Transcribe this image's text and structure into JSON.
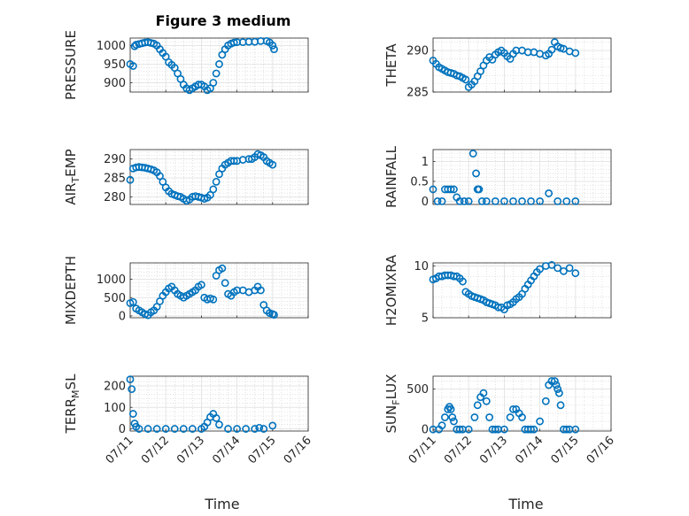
{
  "figure": {
    "title": "Figure 3 medium",
    "xlabel": "Time",
    "x_ticklabels": [
      "07/11",
      "07/12",
      "07/13",
      "07/14",
      "07/15",
      "07/16"
    ]
  },
  "chart_data": [
    {
      "type": "scatter",
      "panel": "left-1",
      "ylabel": "PRESSURE",
      "xlim": [
        "07/11",
        "07/16"
      ],
      "ylim": [
        875,
        1020
      ],
      "yticks": [
        900,
        950,
        1000
      ],
      "grid": true,
      "x": [
        "07/11 00:00",
        "07/11 02:00",
        "07/11 03:00",
        "07/11 04:00",
        "07/11 06:00",
        "07/11 08:00",
        "07/11 10:00",
        "07/11 12:00",
        "07/11 14:00",
        "07/11 16:00",
        "07/11 18:00",
        "07/11 20:00",
        "07/11 22:00",
        "07/12 00:00",
        "07/12 02:00",
        "07/12 04:00",
        "07/12 06:00",
        "07/12 08:00",
        "07/12 10:00",
        "07/12 12:00",
        "07/12 14:00",
        "07/12 16:00",
        "07/12 18:00",
        "07/12 20:00",
        "07/12 22:00",
        "07/13 00:00",
        "07/13 02:00",
        "07/13 04:00",
        "07/13 06:00",
        "07/13 08:00",
        "07/13 10:00",
        "07/13 12:00",
        "07/13 14:00",
        "07/13 16:00",
        "07/13 18:00",
        "07/13 20:00",
        "07/13 22:00",
        "07/14 00:00",
        "07/14 04:00",
        "07/14 08:00",
        "07/14 12:00",
        "07/14 16:00",
        "07/14 20:00",
        "07/14 22:00",
        "07/15 00:00",
        "07/15 01:00"
      ],
      "y": [
        950,
        945,
        998,
        1002,
        1004,
        1006,
        1008,
        1009,
        1007,
        1005,
        1000,
        990,
        980,
        970,
        955,
        948,
        940,
        925,
        910,
        895,
        885,
        880,
        885,
        890,
        895,
        895,
        890,
        880,
        885,
        900,
        925,
        950,
        975,
        990,
        1000,
        1005,
        1008,
        1009,
        1009,
        1010,
        1010,
        1012,
        1012,
        1008,
        1000,
        990
      ]
    },
    {
      "type": "scatter",
      "panel": "right-1",
      "ylabel": "THETA",
      "xlim": [
        "07/11",
        "07/16"
      ],
      "ylim": [
        285,
        291.5
      ],
      "yticks": [
        285,
        290
      ],
      "grid": true,
      "x": [
        "07/11 00:00",
        "07/11 02:00",
        "07/11 04:00",
        "07/11 06:00",
        "07/11 08:00",
        "07/11 10:00",
        "07/11 12:00",
        "07/11 14:00",
        "07/11 16:00",
        "07/11 18:00",
        "07/11 20:00",
        "07/11 22:00",
        "07/12 00:00",
        "07/12 02:00",
        "07/12 04:00",
        "07/12 06:00",
        "07/12 08:00",
        "07/12 10:00",
        "07/12 12:00",
        "07/12 14:00",
        "07/12 16:00",
        "07/12 18:00",
        "07/12 20:00",
        "07/12 22:00",
        "07/13 00:00",
        "07/13 02:00",
        "07/13 04:00",
        "07/13 06:00",
        "07/13 08:00",
        "07/13 12:00",
        "07/13 16:00",
        "07/13 20:00",
        "07/14 00:00",
        "07/14 04:00",
        "07/14 06:00",
        "07/14 08:00",
        "07/14 10:00",
        "07/14 12:00",
        "07/14 14:00",
        "07/14 16:00",
        "07/14 20:00",
        "07/15 00:00"
      ],
      "y": [
        288.8,
        288.4,
        288.0,
        287.8,
        287.6,
        287.4,
        287.3,
        287.2,
        287.0,
        286.9,
        286.7,
        286.5,
        285.6,
        285.9,
        286.3,
        286.9,
        287.5,
        288.2,
        288.8,
        289.2,
        288.9,
        289.5,
        289.8,
        290.0,
        289.7,
        289.3,
        289.0,
        289.6,
        290.0,
        290.0,
        289.8,
        289.8,
        289.6,
        289.4,
        289.6,
        290.1,
        291.0,
        290.5,
        290.3,
        290.2,
        289.9,
        289.7
      ]
    },
    {
      "type": "scatter",
      "panel": "left-2",
      "ylabel": "AIR_TEMP",
      "xlim": [
        "07/11",
        "07/16"
      ],
      "ylim": [
        278,
        292.5
      ],
      "yticks": [
        280,
        285,
        290
      ],
      "grid": true,
      "x": [
        "07/11 00:00",
        "07/11 02:00",
        "07/11 04:00",
        "07/11 06:00",
        "07/11 08:00",
        "07/11 10:00",
        "07/11 12:00",
        "07/11 14:00",
        "07/11 16:00",
        "07/11 18:00",
        "07/11 20:00",
        "07/11 22:00",
        "07/12 00:00",
        "07/12 02:00",
        "07/12 04:00",
        "07/12 06:00",
        "07/12 08:00",
        "07/12 10:00",
        "07/12 12:00",
        "07/12 14:00",
        "07/12 16:00",
        "07/12 18:00",
        "07/12 20:00",
        "07/12 22:00",
        "07/13 00:00",
        "07/13 02:00",
        "07/13 04:00",
        "07/13 06:00",
        "07/13 08:00",
        "07/13 10:00",
        "07/13 12:00",
        "07/13 14:00",
        "07/13 16:00",
        "07/13 18:00",
        "07/13 20:00",
        "07/13 22:00",
        "07/14 00:00",
        "07/14 04:00",
        "07/14 08:00",
        "07/14 10:00",
        "07/14 12:00",
        "07/14 14:00",
        "07/14 16:00",
        "07/14 18:00",
        "07/14 20:00",
        "07/14 22:00",
        "07/15 00:00"
      ],
      "y": [
        284.5,
        287.5,
        287.8,
        287.9,
        287.8,
        287.7,
        287.5,
        287.3,
        287.0,
        286.5,
        285.5,
        284.0,
        282.5,
        281.5,
        280.8,
        280.5,
        280.2,
        280.0,
        279.5,
        279.0,
        279.3,
        280.0,
        280.2,
        280.0,
        279.8,
        279.5,
        279.8,
        280.5,
        282.0,
        284.0,
        286.0,
        287.5,
        288.5,
        289.0,
        289.5,
        289.5,
        289.5,
        289.8,
        290.0,
        290.0,
        290.5,
        291.3,
        291.0,
        290.5,
        289.5,
        289.0,
        288.5
      ]
    },
    {
      "type": "scatter",
      "panel": "right-2",
      "ylabel": "RAINFALL",
      "xlim": [
        "07/11",
        "07/16"
      ],
      "ylim": [
        -0.08,
        1.3
      ],
      "yticks": [
        0,
        0.5,
        1
      ],
      "grid": true,
      "x": [
        "07/11 00:00",
        "07/11 03:00",
        "07/11 06:00",
        "07/11 08:00",
        "07/11 10:00",
        "07/11 12:00",
        "07/11 14:00",
        "07/11 16:00",
        "07/11 18:00",
        "07/11 21:00",
        "07/12 00:00",
        "07/12 03:00",
        "07/12 05:00",
        "07/12 06:00",
        "07/12 07:00",
        "07/12 09:00",
        "07/12 12:00",
        "07/12 18:00",
        "07/13 00:00",
        "07/13 06:00",
        "07/13 12:00",
        "07/13 18:00",
        "07/14 00:00",
        "07/14 06:00",
        "07/14 12:00",
        "07/14 18:00",
        "07/15 00:00"
      ],
      "y": [
        0.3,
        0,
        0,
        0.3,
        0.3,
        0.3,
        0.3,
        0.1,
        0,
        0,
        0,
        1.2,
        0.7,
        0.3,
        0.3,
        0,
        0,
        0,
        0,
        0,
        0,
        0,
        0,
        0.2,
        0,
        0,
        0
      ]
    },
    {
      "type": "scatter",
      "panel": "left-3",
      "ylabel": "MIXDEPTH",
      "xlim": [
        "07/11",
        "07/16"
      ],
      "ylim": [
        -50,
        1450
      ],
      "yticks": [
        0,
        500,
        1000
      ],
      "grid": true,
      "x": [
        "07/11 00:00",
        "07/11 02:00",
        "07/11 04:00",
        "07/11 06:00",
        "07/11 08:00",
        "07/11 10:00",
        "07/11 12:00",
        "07/11 14:00",
        "07/11 16:00",
        "07/11 18:00",
        "07/11 20:00",
        "07/11 22:00",
        "07/12 00:00",
        "07/12 02:00",
        "07/12 04:00",
        "07/12 06:00",
        "07/12 08:00",
        "07/12 10:00",
        "07/12 12:00",
        "07/12 14:00",
        "07/12 16:00",
        "07/12 18:00",
        "07/12 20:00",
        "07/12 22:00",
        "07/13 00:00",
        "07/13 02:00",
        "07/13 04:00",
        "07/13 06:00",
        "07/13 08:00",
        "07/13 10:00",
        "07/13 12:00",
        "07/13 14:00",
        "07/13 16:00",
        "07/13 18:00",
        "07/13 20:00",
        "07/13 22:00",
        "07/14 00:00",
        "07/14 04:00",
        "07/14 08:00",
        "07/14 12:00",
        "07/14 14:00",
        "07/14 16:00",
        "07/14 18:00",
        "07/14 20:00",
        "07/14 22:00",
        "07/15 00:00",
        "07/15 01:00"
      ],
      "y": [
        350,
        380,
        200,
        150,
        100,
        50,
        20,
        100,
        150,
        250,
        400,
        550,
        650,
        750,
        800,
        700,
        600,
        550,
        500,
        550,
        600,
        650,
        700,
        800,
        850,
        500,
        450,
        480,
        450,
        1100,
        1250,
        1300,
        900,
        600,
        550,
        650,
        700,
        700,
        650,
        700,
        800,
        700,
        300,
        150,
        80,
        50,
        30
      ]
    },
    {
      "type": "scatter",
      "panel": "right-3",
      "ylabel": "H2OMIXRA",
      "xlim": [
        "07/11",
        "07/16"
      ],
      "ylim": [
        5,
        10.3
      ],
      "yticks": [
        5,
        10
      ],
      "grid": true,
      "x": [
        "07/11 00:00",
        "07/11 02:00",
        "07/11 04:00",
        "07/11 06:00",
        "07/11 08:00",
        "07/11 10:00",
        "07/11 12:00",
        "07/11 14:00",
        "07/11 16:00",
        "07/11 18:00",
        "07/11 20:00",
        "07/11 22:00",
        "07/12 00:00",
        "07/12 02:00",
        "07/12 04:00",
        "07/12 06:00",
        "07/12 08:00",
        "07/12 10:00",
        "07/12 12:00",
        "07/12 14:00",
        "07/12 16:00",
        "07/12 18:00",
        "07/12 20:00",
        "07/12 22:00",
        "07/13 00:00",
        "07/13 02:00",
        "07/13 04:00",
        "07/13 06:00",
        "07/13 08:00",
        "07/13 10:00",
        "07/13 12:00",
        "07/13 14:00",
        "07/13 16:00",
        "07/13 18:00",
        "07/13 20:00",
        "07/13 22:00",
        "07/14 00:00",
        "07/14 04:00",
        "07/14 08:00",
        "07/14 12:00",
        "07/14 16:00",
        "07/14 20:00",
        "07/15 00:00"
      ],
      "y": [
        8.7,
        8.8,
        9.0,
        9.0,
        9.1,
        9.1,
        9.1,
        9.0,
        9.0,
        8.8,
        8.5,
        7.5,
        7.3,
        7.1,
        7.0,
        6.9,
        6.8,
        6.7,
        6.5,
        6.4,
        6.3,
        6.2,
        6.0,
        6.0,
        5.8,
        6.2,
        6.3,
        6.5,
        6.8,
        7.0,
        7.3,
        7.8,
        8.2,
        8.6,
        9.0,
        9.4,
        9.7,
        10.0,
        10.1,
        9.8,
        9.5,
        9.8,
        9.3
      ]
    },
    {
      "type": "scatter",
      "panel": "left-4",
      "ylabel": "TERR_MSL",
      "xlim": [
        "07/11",
        "07/16"
      ],
      "ylim": [
        -10,
        245
      ],
      "yticks": [
        0,
        100,
        200
      ],
      "grid": true,
      "x": [
        "07/11 00:00",
        "07/11 01:00",
        "07/11 02:00",
        "07/11 03:00",
        "07/11 04:00",
        "07/11 06:00",
        "07/11 12:00",
        "07/11 18:00",
        "07/12 00:00",
        "07/12 06:00",
        "07/12 12:00",
        "07/12 18:00",
        "07/13 00:00",
        "07/13 02:00",
        "07/13 04:00",
        "07/13 06:00",
        "07/13 08:00",
        "07/13 10:00",
        "07/13 12:00",
        "07/13 18:00",
        "07/14 00:00",
        "07/14 06:00",
        "07/14 12:00",
        "07/14 15:00",
        "07/14 18:00",
        "07/15 00:00"
      ],
      "y": [
        230,
        185,
        70,
        25,
        10,
        0,
        0,
        0,
        0,
        0,
        0,
        0,
        0,
        10,
        30,
        55,
        70,
        50,
        20,
        0,
        0,
        0,
        0,
        5,
        0,
        15
      ]
    },
    {
      "type": "scatter",
      "panel": "right-4",
      "ylabel": "SUN_FLUX",
      "xlim": [
        "07/11",
        "07/16"
      ],
      "ylim": [
        -20,
        660
      ],
      "yticks": [
        0,
        500
      ],
      "grid": true,
      "x": [
        "07/11 00:00",
        "07/11 04:00",
        "07/11 06:00",
        "07/11 08:00",
        "07/11 10:00",
        "07/11 11:00",
        "07/11 12:00",
        "07/11 13:00",
        "07/11 14:00",
        "07/11 16:00",
        "07/11 18:00",
        "07/11 20:00",
        "07/12 00:00",
        "07/12 04:00",
        "07/12 06:00",
        "07/12 08:00",
        "07/12 10:00",
        "07/12 12:00",
        "07/12 14:00",
        "07/12 16:00",
        "07/12 18:00",
        "07/12 20:00",
        "07/13 00:00",
        "07/13 04:00",
        "07/13 06:00",
        "07/13 08:00",
        "07/13 10:00",
        "07/13 12:00",
        "07/13 14:00",
        "07/13 16:00",
        "07/13 18:00",
        "07/13 20:00",
        "07/14 00:00",
        "07/14 04:00",
        "07/14 06:00",
        "07/14 08:00",
        "07/14 10:00",
        "07/14 11:00",
        "07/14 12:00",
        "07/14 13:00",
        "07/14 14:00",
        "07/14 16:00",
        "07/14 18:00",
        "07/14 20:00",
        "07/15 00:00"
      ],
      "y": [
        0,
        0,
        50,
        150,
        250,
        280,
        250,
        150,
        100,
        0,
        0,
        0,
        0,
        150,
        300,
        400,
        450,
        350,
        150,
        0,
        0,
        0,
        0,
        150,
        250,
        250,
        200,
        150,
        0,
        0,
        0,
        0,
        100,
        350,
        550,
        600,
        600,
        550,
        500,
        450,
        300,
        0,
        0,
        0,
        0
      ]
    }
  ]
}
